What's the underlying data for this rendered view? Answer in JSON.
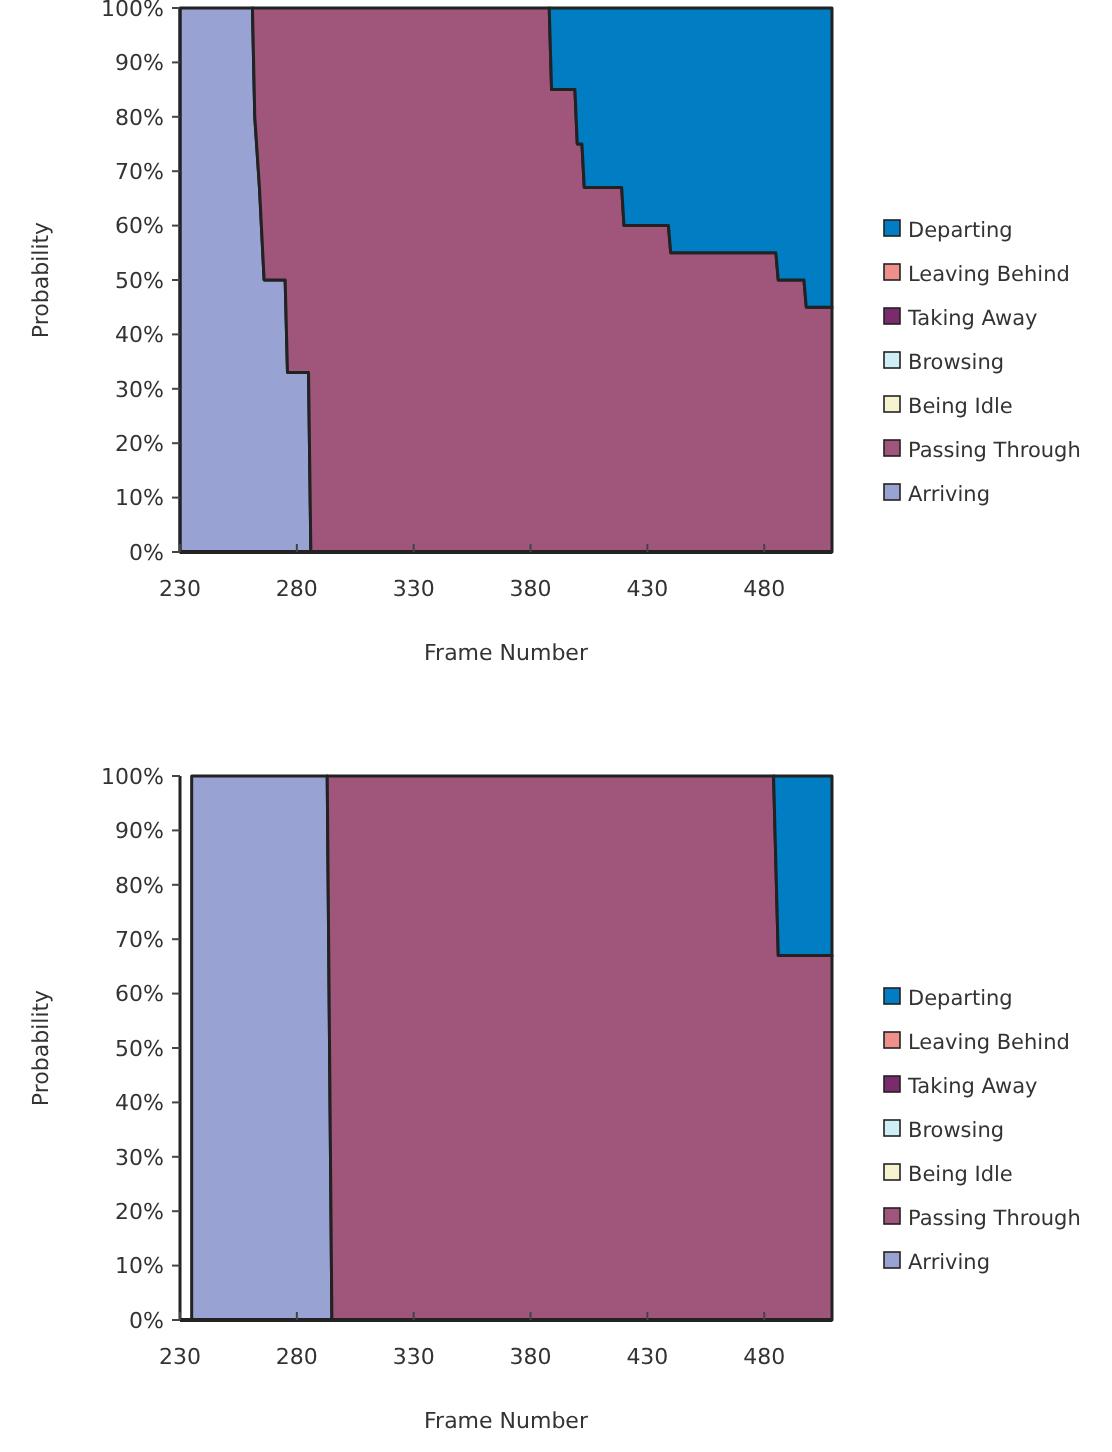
{
  "chart_data": [
    {
      "type": "area",
      "stacked": true,
      "xlabel": "Frame Number",
      "ylabel": "Probability",
      "legend": "right",
      "grid": false,
      "x": [
        230,
        261,
        262,
        264,
        266,
        275,
        276,
        285,
        286,
        388,
        389,
        399,
        400,
        402,
        403,
        419,
        420,
        439,
        440,
        485,
        486,
        497,
        498,
        509
      ],
      "xlim": [
        230,
        509
      ],
      "xticks": [
        230,
        280,
        330,
        380,
        430,
        480
      ],
      "ylim": [
        0,
        100
      ],
      "yticks": [
        {
          "value": 0,
          "label": "0%"
        },
        {
          "value": 10,
          "label": "10%"
        },
        {
          "value": 20,
          "label": "20%"
        },
        {
          "value": 30,
          "label": "30%"
        },
        {
          "value": 40,
          "label": "40%"
        },
        {
          "value": 50,
          "label": "50%"
        },
        {
          "value": 60,
          "label": "60%"
        },
        {
          "value": 70,
          "label": "70%"
        },
        {
          "value": 80,
          "label": "80%"
        },
        {
          "value": 90,
          "label": "90%"
        },
        {
          "value": 100,
          "label": "100%"
        }
      ],
      "series": [
        {
          "name": "Arriving",
          "color": "#99a3d3",
          "values": [
            100,
            100,
            80,
            67,
            50,
            50,
            33,
            33,
            0,
            null,
            null,
            null,
            null,
            null,
            null,
            null,
            null,
            null,
            null,
            null,
            null,
            null,
            null,
            null
          ]
        },
        {
          "name": "Passing Through",
          "color": "#a0557a",
          "values": [
            null,
            0,
            20,
            33,
            50,
            50,
            67,
            67,
            100,
            100,
            85,
            85,
            75,
            75,
            67,
            67,
            60,
            60,
            55,
            55,
            50,
            50,
            45,
            45
          ]
        },
        {
          "name": "Being Idle",
          "color": "#f5f3d0",
          "values": [
            null,
            null,
            null,
            null,
            null,
            null,
            null,
            null,
            null,
            null,
            null,
            null,
            null,
            null,
            null,
            null,
            null,
            null,
            null,
            null,
            null,
            null,
            null,
            null
          ]
        },
        {
          "name": "Browsing",
          "color": "#d0eef5",
          "values": [
            null,
            null,
            null,
            null,
            null,
            null,
            null,
            null,
            null,
            null,
            null,
            null,
            null,
            null,
            null,
            null,
            null,
            null,
            null,
            null,
            null,
            null,
            null,
            null
          ]
        },
        {
          "name": "Taking Away",
          "color": "#7b2a6e",
          "values": [
            null,
            null,
            null,
            null,
            null,
            null,
            null,
            null,
            null,
            null,
            null,
            null,
            null,
            null,
            null,
            null,
            null,
            null,
            null,
            null,
            null,
            null,
            null,
            null
          ]
        },
        {
          "name": "Leaving Behind",
          "color": "#f0908a",
          "values": [
            null,
            null,
            null,
            null,
            null,
            null,
            null,
            null,
            null,
            null,
            null,
            null,
            null,
            null,
            null,
            null,
            null,
            null,
            null,
            null,
            null,
            null,
            null,
            null
          ]
        },
        {
          "name": "Departing",
          "color": "#007dc3",
          "values": [
            null,
            null,
            null,
            null,
            null,
            null,
            null,
            null,
            null,
            0,
            15,
            15,
            25,
            25,
            33,
            33,
            40,
            40,
            45,
            45,
            50,
            50,
            55,
            55
          ]
        }
      ]
    },
    {
      "type": "area",
      "stacked": true,
      "xlabel": "Frame Number",
      "ylabel": "Probability",
      "legend": "right",
      "grid": false,
      "x": [
        235,
        293,
        295,
        484,
        486,
        509
      ],
      "xlim": [
        230,
        509
      ],
      "xticks": [
        230,
        280,
        330,
        380,
        430,
        480
      ],
      "ylim": [
        0,
        100
      ],
      "yticks": [
        {
          "value": 0,
          "label": "0%"
        },
        {
          "value": 10,
          "label": "10%"
        },
        {
          "value": 20,
          "label": "20%"
        },
        {
          "value": 30,
          "label": "30%"
        },
        {
          "value": 40,
          "label": "40%"
        },
        {
          "value": 50,
          "label": "50%"
        },
        {
          "value": 60,
          "label": "60%"
        },
        {
          "value": 70,
          "label": "70%"
        },
        {
          "value": 80,
          "label": "80%"
        },
        {
          "value": 90,
          "label": "90%"
        },
        {
          "value": 100,
          "label": "100%"
        }
      ],
      "series": [
        {
          "name": "Arriving",
          "color": "#99a3d3",
          "values": [
            100,
            100,
            0,
            null,
            null,
            null
          ]
        },
        {
          "name": "Passing Through",
          "color": "#a0557a",
          "values": [
            null,
            0,
            100,
            100,
            67,
            67
          ]
        },
        {
          "name": "Being Idle",
          "color": "#f5f3d0",
          "values": [
            null,
            null,
            null,
            null,
            null,
            null
          ]
        },
        {
          "name": "Browsing",
          "color": "#d0eef5",
          "values": [
            null,
            null,
            null,
            null,
            null,
            null
          ]
        },
        {
          "name": "Taking Away",
          "color": "#7b2a6e",
          "values": [
            null,
            null,
            null,
            null,
            null,
            null
          ]
        },
        {
          "name": "Leaving Behind",
          "color": "#f0908a",
          "values": [
            null,
            null,
            null,
            null,
            null,
            null
          ]
        },
        {
          "name": "Departing",
          "color": "#007dc3",
          "values": [
            null,
            null,
            null,
            0,
            33,
            33
          ]
        }
      ]
    }
  ]
}
